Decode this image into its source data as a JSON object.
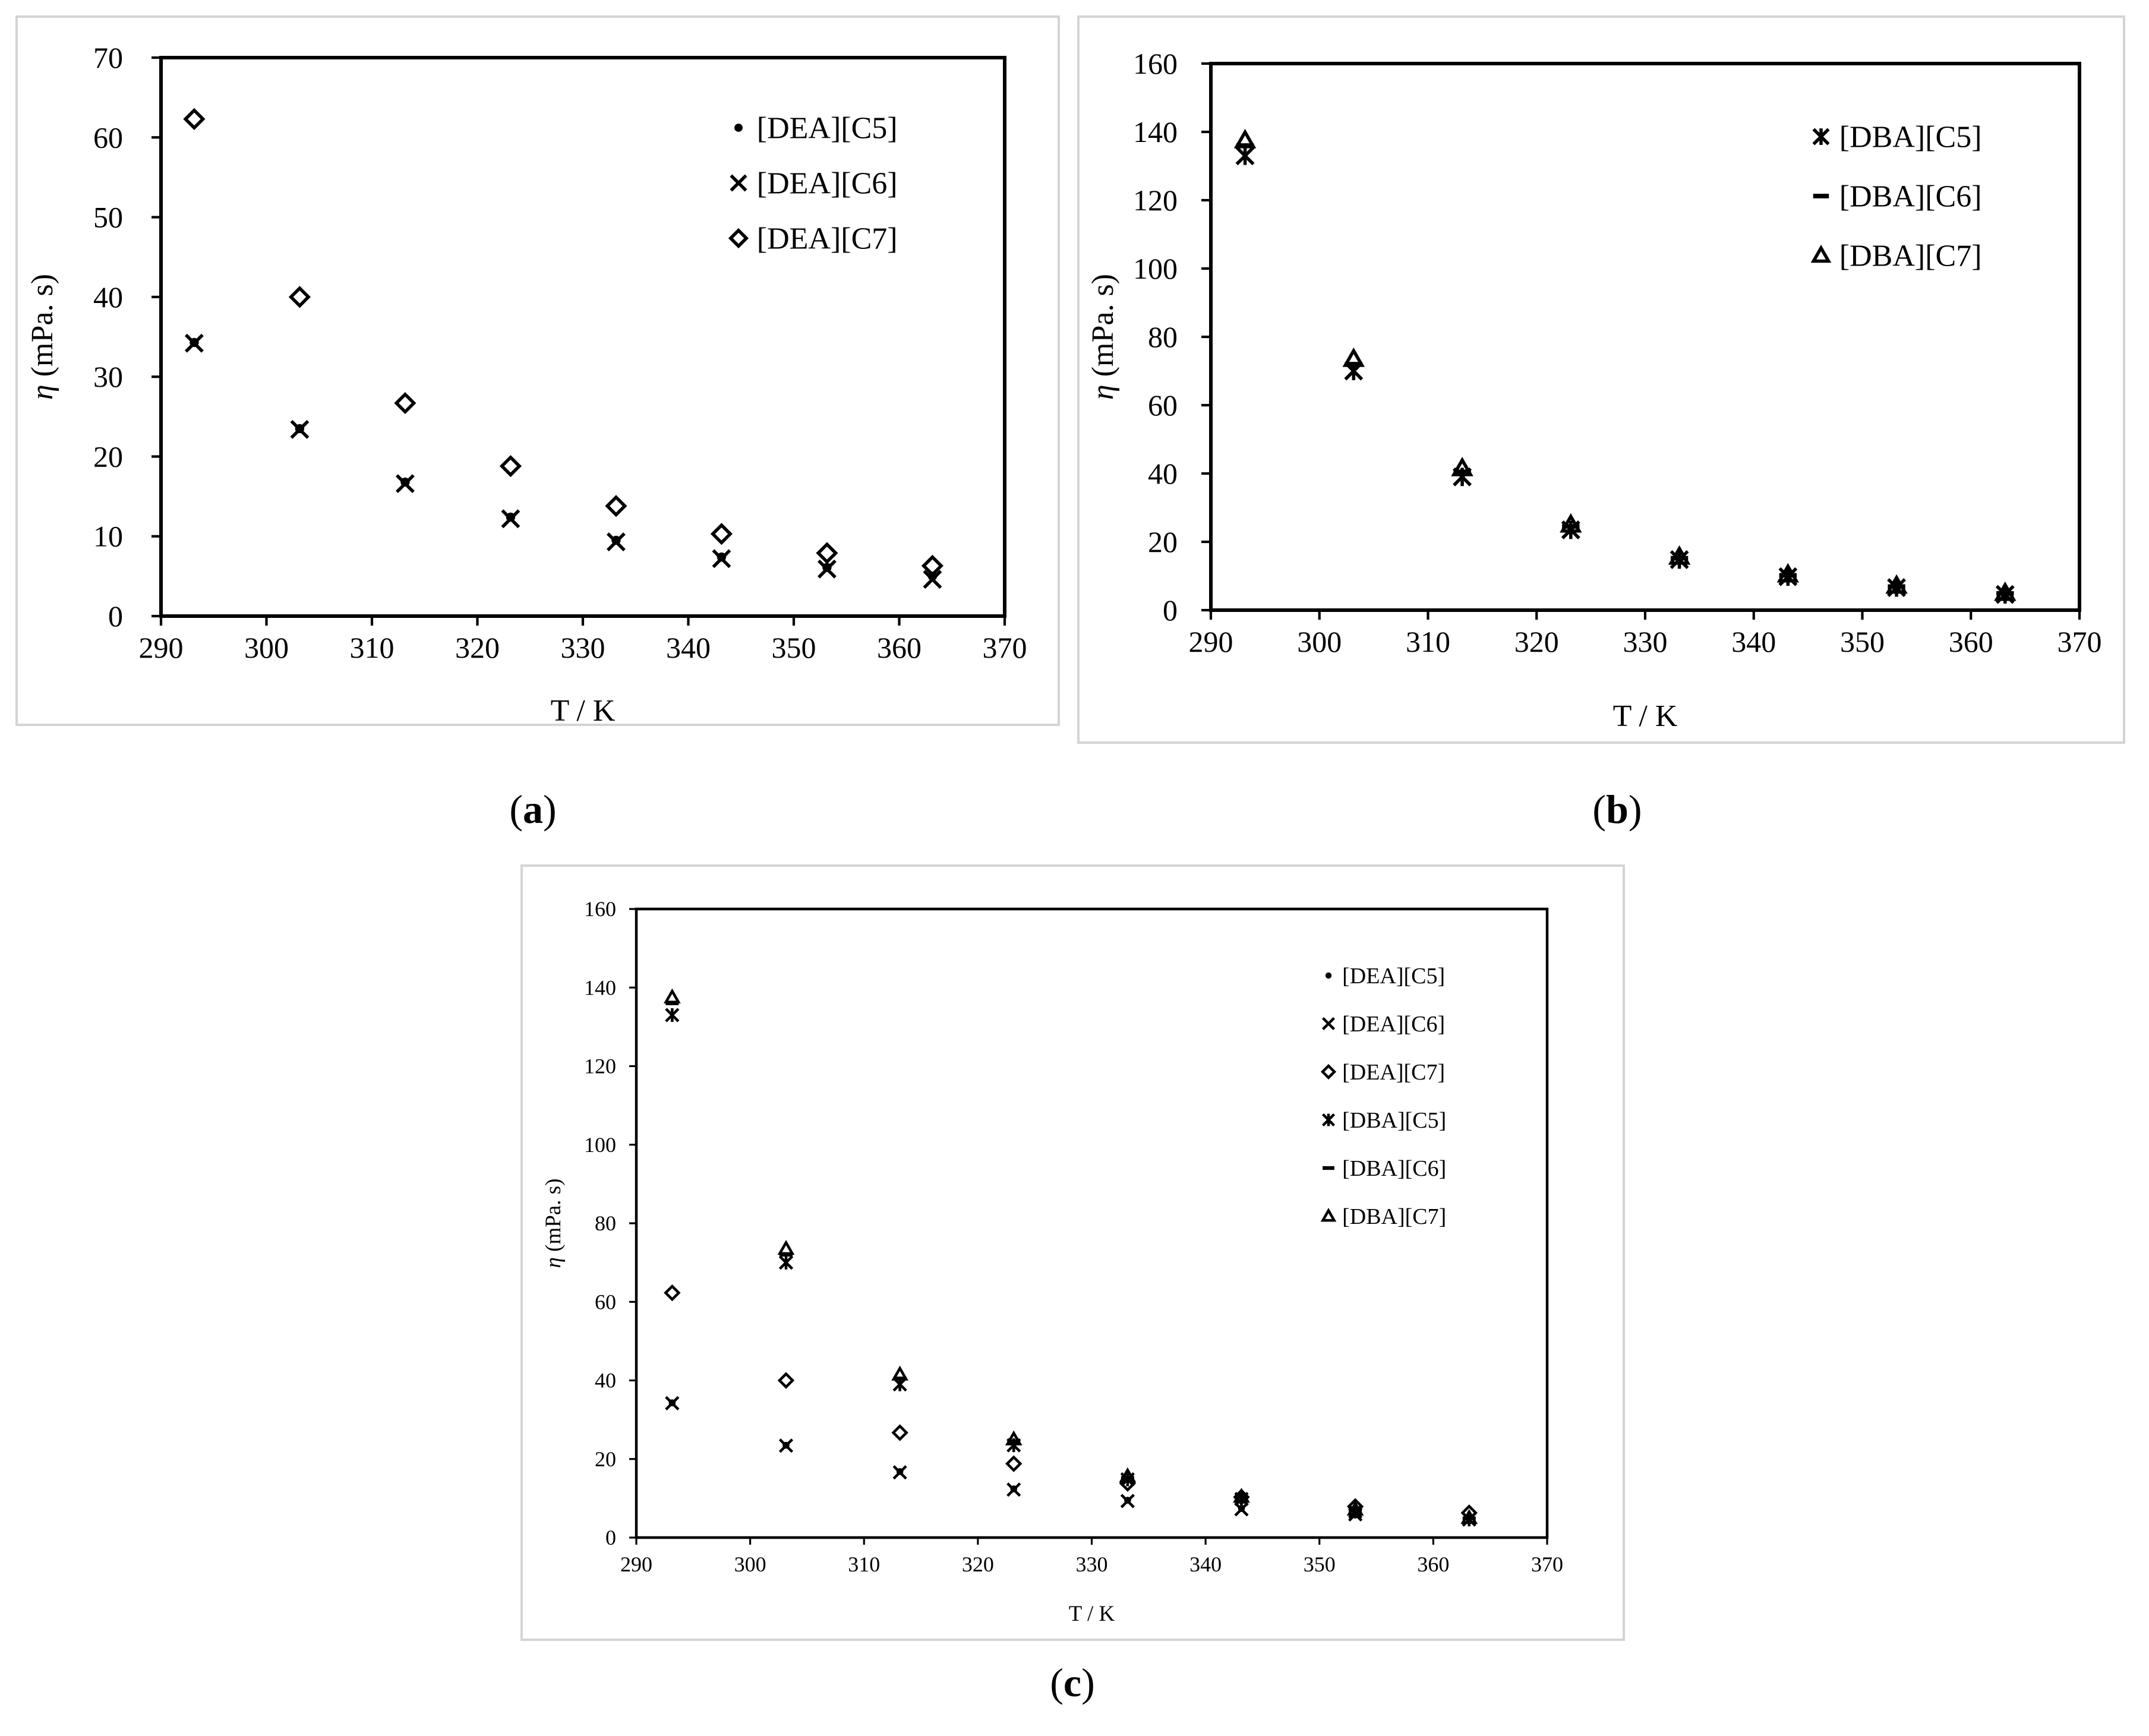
{
  "chart_data": [
    {
      "type": "scatter",
      "panel": "a",
      "caption_letter": "a",
      "xlabel": "T / K",
      "ylabel_symbol": "η",
      "ylabel_unit": "(mPa. s)",
      "xlim": [
        290,
        370
      ],
      "ylim": [
        0,
        70
      ],
      "x_ticks": [
        290,
        300,
        310,
        320,
        330,
        340,
        350,
        360,
        370
      ],
      "y_ticks": [
        0,
        10,
        20,
        30,
        40,
        50,
        60,
        70
      ],
      "legend_position": "top-right",
      "x": [
        293.15,
        303.15,
        313.15,
        323.15,
        333.15,
        343.15,
        353.15,
        363.15
      ],
      "series": [
        {
          "name": "[DEA][C5]",
          "marker": "dot",
          "values": [
            34.3,
            23.5,
            16.8,
            12.4,
            9.5,
            7.4,
            6.1,
            5.0
          ]
        },
        {
          "name": "[DEA][C6]",
          "marker": "x",
          "values": [
            34.2,
            23.4,
            16.6,
            12.2,
            9.3,
            7.2,
            5.9,
            4.6
          ]
        },
        {
          "name": "[DEA][C7]",
          "marker": "diamond",
          "values": [
            62.3,
            40.0,
            26.7,
            18.8,
            13.8,
            10.3,
            7.9,
            6.3
          ]
        }
      ]
    },
    {
      "type": "scatter",
      "panel": "b",
      "caption_letter": "b",
      "xlabel": "T / K",
      "ylabel_symbol": "η",
      "ylabel_unit": "(mPa. s)",
      "xlim": [
        290,
        370
      ],
      "ylim": [
        0,
        160
      ],
      "x_ticks": [
        290,
        300,
        310,
        320,
        330,
        340,
        350,
        360,
        370
      ],
      "y_ticks": [
        0,
        20,
        40,
        60,
        80,
        100,
        120,
        140,
        160
      ],
      "legend_position": "top-right",
      "x": [
        293.15,
        303.15,
        313.15,
        323.15,
        333.15,
        343.15,
        353.15,
        363.15
      ],
      "series": [
        {
          "name": "[DBA][C5]",
          "marker": "asterisk",
          "values": [
            133.0,
            70.0,
            39.0,
            23.5,
            14.8,
            9.8,
            6.6,
            4.6
          ]
        },
        {
          "name": "[DBA][C6]",
          "marker": "dash",
          "values": [
            136.0,
            72.0,
            40.5,
            24.5,
            15.2,
            10.2,
            6.9,
            4.9
          ]
        },
        {
          "name": "[DBA][C7]",
          "marker": "triangle",
          "values": [
            137.5,
            73.5,
            41.5,
            25.0,
            15.6,
            10.4,
            7.1,
            5.0
          ]
        }
      ]
    },
    {
      "type": "scatter",
      "panel": "c",
      "caption_letter": "c",
      "xlabel": "T / K",
      "ylabel_symbol": "η",
      "ylabel_unit": "(mPa. s)",
      "xlim": [
        290,
        370
      ],
      "ylim": [
        0,
        160
      ],
      "x_ticks": [
        290,
        300,
        310,
        320,
        330,
        340,
        350,
        360,
        370
      ],
      "y_ticks": [
        0,
        20,
        40,
        60,
        80,
        100,
        120,
        140,
        160
      ],
      "legend_position": "top-right",
      "x": [
        293.15,
        303.15,
        313.15,
        323.15,
        333.15,
        343.15,
        353.15,
        363.15
      ],
      "series": [
        {
          "name": "[DEA][C5]",
          "marker": "dot",
          "values": [
            34.3,
            23.5,
            16.8,
            12.4,
            9.5,
            7.4,
            6.1,
            5.0
          ]
        },
        {
          "name": "[DEA][C6]",
          "marker": "x",
          "values": [
            34.2,
            23.4,
            16.6,
            12.2,
            9.3,
            7.2,
            5.9,
            4.6
          ]
        },
        {
          "name": "[DEA][C7]",
          "marker": "diamond",
          "values": [
            62.3,
            40.0,
            26.7,
            18.8,
            13.8,
            10.3,
            7.9,
            6.3
          ]
        },
        {
          "name": "[DBA][C5]",
          "marker": "asterisk",
          "values": [
            133.0,
            70.0,
            39.0,
            23.5,
            14.8,
            9.8,
            6.6,
            4.6
          ]
        },
        {
          "name": "[DBA][C6]",
          "marker": "dash",
          "values": [
            136.0,
            72.0,
            40.5,
            24.5,
            15.2,
            10.2,
            6.9,
            4.9
          ]
        },
        {
          "name": "[DBA][C7]",
          "marker": "triangle",
          "values": [
            137.5,
            73.5,
            41.5,
            25.0,
            15.6,
            10.4,
            7.1,
            5.0
          ]
        }
      ]
    }
  ]
}
